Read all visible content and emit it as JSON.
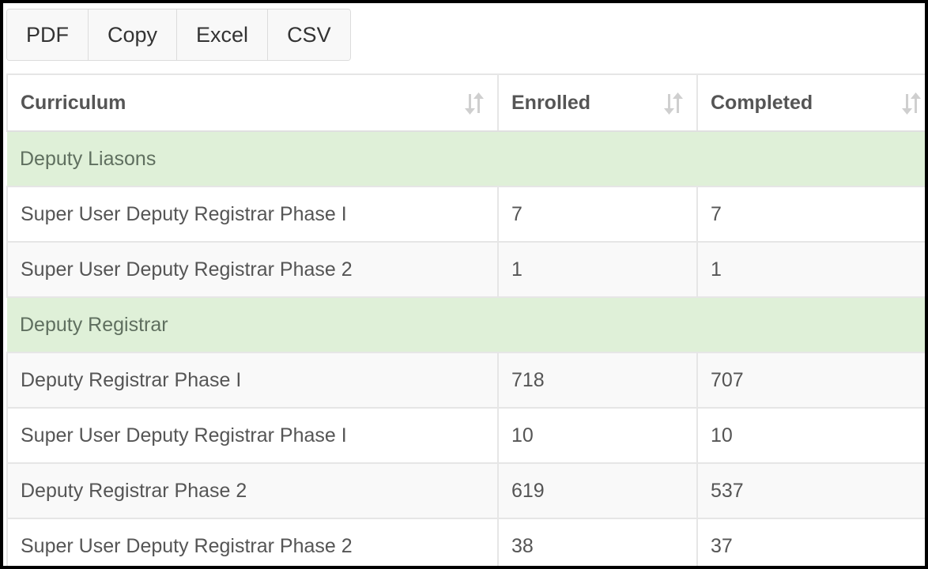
{
  "toolbar": {
    "buttons": [
      {
        "label": "PDF"
      },
      {
        "label": "Copy"
      },
      {
        "label": "Excel"
      },
      {
        "label": "CSV"
      }
    ]
  },
  "table": {
    "columns": [
      {
        "label": "Curriculum"
      },
      {
        "label": "Enrolled"
      },
      {
        "label": "Completed"
      }
    ],
    "rows": [
      {
        "type": "group",
        "label": "Deputy Liasons"
      },
      {
        "type": "data",
        "curriculum": "Super User Deputy Registrar Phase I",
        "enrolled": "7",
        "completed": "7"
      },
      {
        "type": "data",
        "curriculum": "Super User Deputy Registrar Phase 2",
        "enrolled": "1",
        "completed": "1"
      },
      {
        "type": "group",
        "label": "Deputy Registrar"
      },
      {
        "type": "data",
        "curriculum": "Deputy Registrar Phase I",
        "enrolled": "718",
        "completed": "707"
      },
      {
        "type": "data",
        "curriculum": "Super User Deputy Registrar Phase I",
        "enrolled": "10",
        "completed": "10"
      },
      {
        "type": "data",
        "curriculum": "Deputy Registrar Phase 2",
        "enrolled": "619",
        "completed": "537"
      },
      {
        "type": "data",
        "curriculum": "Super User Deputy Registrar Phase 2",
        "enrolled": "38",
        "completed": "37"
      }
    ]
  },
  "icons": {
    "sort": "sort-both-icon"
  },
  "colors": {
    "group_row_bg": "#dff0d8",
    "header_text": "#555555",
    "border": "#e6e6e6"
  }
}
